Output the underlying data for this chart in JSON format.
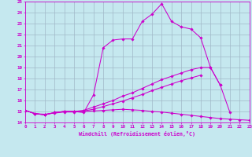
{
  "background_color": "#c5e8ef",
  "line_color": "#cc00cc",
  "grid_color": "#a0b8c8",
  "xlabel": "Windchill (Refroidissement éolien,°C)",
  "xlim": [
    0,
    23
  ],
  "ylim": [
    14,
    25
  ],
  "xticks": [
    0,
    1,
    2,
    3,
    4,
    5,
    6,
    7,
    8,
    9,
    10,
    11,
    12,
    13,
    14,
    15,
    16,
    17,
    18,
    19,
    20,
    21,
    22,
    23
  ],
  "yticks": [
    14,
    15,
    16,
    17,
    18,
    19,
    20,
    21,
    22,
    23,
    24,
    25
  ],
  "lines": [
    [
      15.1,
      14.8,
      14.7,
      14.9,
      15.0,
      15.0,
      14.9,
      16.5,
      20.8,
      21.5,
      21.6,
      21.6,
      23.2,
      23.85,
      24.8,
      23.2,
      22.7,
      22.5,
      21.7,
      19.0,
      17.4,
      14.9,
      null,
      null
    ],
    [
      15.1,
      14.8,
      14.7,
      14.9,
      15.0,
      15.0,
      15.1,
      15.4,
      15.7,
      16.0,
      16.4,
      16.7,
      17.1,
      17.5,
      17.9,
      18.2,
      18.5,
      18.8,
      19.0,
      19.0,
      17.4,
      null,
      null,
      null
    ],
    [
      15.1,
      14.8,
      14.75,
      14.85,
      14.95,
      14.95,
      15.0,
      15.05,
      15.1,
      15.15,
      15.2,
      15.15,
      15.1,
      15.0,
      14.95,
      14.85,
      14.75,
      14.65,
      14.55,
      14.45,
      14.35,
      14.3,
      14.25,
      14.2
    ],
    [
      15.1,
      14.8,
      14.7,
      14.9,
      15.0,
      15.0,
      15.05,
      15.2,
      15.45,
      15.7,
      15.95,
      16.25,
      16.55,
      16.9,
      17.2,
      17.5,
      17.8,
      18.05,
      18.3,
      null,
      null,
      null,
      null,
      null
    ]
  ]
}
